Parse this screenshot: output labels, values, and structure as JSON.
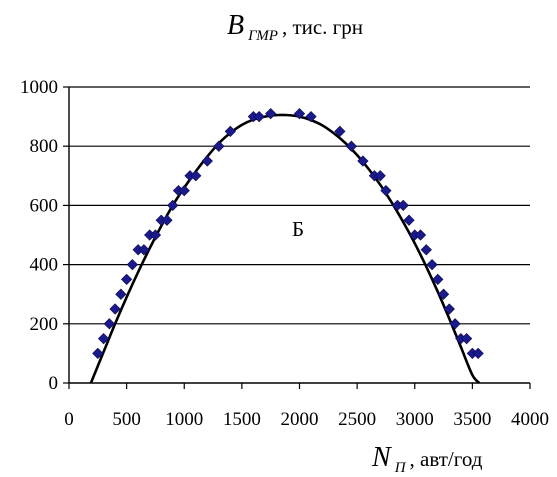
{
  "chart_data": {
    "type": "scatter",
    "title": "",
    "ylabel": {
      "var": "B",
      "sub": "ГМР",
      "rest": ", тис. грн"
    },
    "xlabel": {
      "var": "N",
      "sub": "П",
      "rest": " , авт/год"
    },
    "annotation": "Б",
    "xlim": [
      0,
      4000
    ],
    "ylim": [
      0,
      1000
    ],
    "x_ticks": [
      0,
      500,
      1000,
      1500,
      2000,
      2500,
      3000,
      3500,
      4000
    ],
    "y_ticks": [
      0,
      200,
      400,
      600,
      800,
      1000
    ],
    "grid": "horizontal",
    "series": [
      {
        "type": "scatter",
        "marker": "diamond",
        "color": "#1a1a8c",
        "x": [
          250,
          300,
          350,
          400,
          450,
          500,
          550,
          600,
          650,
          700,
          750,
          800,
          850,
          900,
          950,
          1000,
          1050,
          1100,
          1200,
          1300,
          1400,
          1600,
          1650,
          1750,
          2000,
          2100,
          2350,
          2450,
          2550,
          2650,
          2700,
          2750,
          2850,
          2900,
          2950,
          3000,
          3050,
          3100,
          3150,
          3200,
          3250,
          3300,
          3350,
          3400,
          3450,
          3500,
          3550
        ],
        "y": [
          100,
          150,
          200,
          250,
          300,
          350,
          400,
          450,
          450,
          500,
          500,
          550,
          550,
          600,
          650,
          650,
          700,
          700,
          750,
          800,
          850,
          900,
          900,
          910,
          910,
          900,
          850,
          800,
          750,
          700,
          700,
          650,
          600,
          600,
          550,
          500,
          500,
          450,
          400,
          350,
          300,
          250,
          200,
          150,
          150,
          100,
          100
        ]
      },
      {
        "type": "line",
        "color": "#000000",
        "x": [
          190,
          300,
          400,
          500,
          600,
          700,
          800,
          900,
          1000,
          1100,
          1200,
          1300,
          1400,
          1500,
          1600,
          1700,
          1800,
          1900,
          2000,
          2100,
          2200,
          2300,
          2400,
          2500,
          2600,
          2700,
          2800,
          2900,
          3000,
          3100,
          3200,
          3300,
          3400,
          3500,
          3560
        ],
        "y": [
          0,
          105,
          200,
          290,
          375,
          455,
          530,
          600,
          660,
          715,
          765,
          810,
          845,
          872,
          890,
          900,
          905,
          905,
          900,
          888,
          870,
          843,
          810,
          770,
          723,
          670,
          610,
          544,
          472,
          393,
          308,
          217,
          122,
          27,
          0
        ]
      }
    ]
  }
}
